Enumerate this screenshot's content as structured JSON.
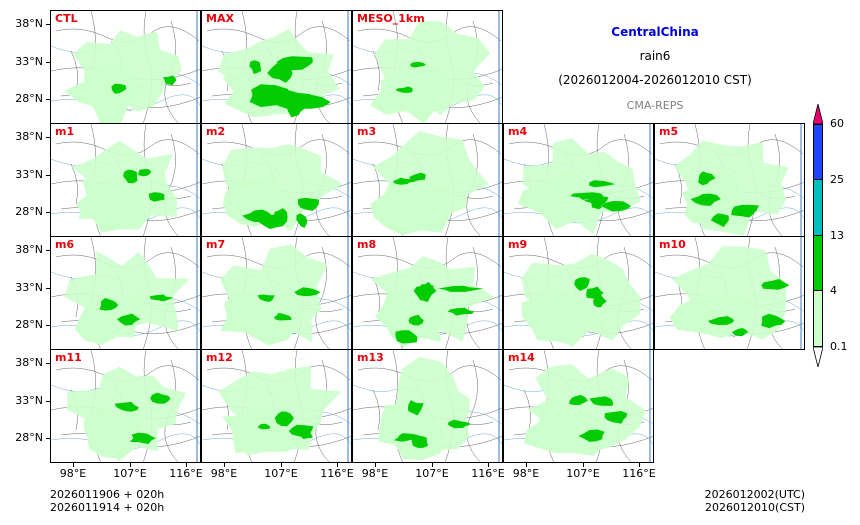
{
  "header": {
    "region": "CentralChina",
    "variable": "rain6",
    "period": "(2026012004-2026012010 CST)",
    "system": "CMA-REPS"
  },
  "panels": [
    {
      "label": "CTL",
      "intensity": 0.35
    },
    {
      "label": "MAX",
      "intensity": 0.95
    },
    {
      "label": "MESO_1km",
      "intensity": 0.15
    },
    {
      "label": "m1",
      "intensity": 0.4
    },
    {
      "label": "m2",
      "intensity": 0.7
    },
    {
      "label": "m3",
      "intensity": 0.3
    },
    {
      "label": "m4",
      "intensity": 0.65
    },
    {
      "label": "m5",
      "intensity": 0.55
    },
    {
      "label": "m6",
      "intensity": 0.4
    },
    {
      "label": "m7",
      "intensity": 0.4
    },
    {
      "label": "m8",
      "intensity": 0.9
    },
    {
      "label": "m9",
      "intensity": 0.45
    },
    {
      "label": "m10",
      "intensity": 0.6
    },
    {
      "label": "m11",
      "intensity": 0.45
    },
    {
      "label": "m12",
      "intensity": 0.6
    },
    {
      "label": "m13",
      "intensity": 0.5
    },
    {
      "label": "m14",
      "intensity": 0.55
    }
  ],
  "axes": {
    "lat_labels": [
      "38°N",
      "33°N",
      "28°N"
    ],
    "lon_labels": [
      "98°E",
      "107°E",
      "116°E"
    ]
  },
  "colorbar": {
    "levels": [
      "0.1",
      "4",
      "13",
      "25",
      "60"
    ],
    "colors": [
      "#ccffcc",
      "#00cc00",
      "#00c0c0",
      "#2244ff",
      "#e8006e"
    ]
  },
  "footer": {
    "init_line1": "2026011906  +  020h",
    "init_line2": "2026011914  +  020h",
    "valid_utc": "2026012002(UTC)",
    "valid_cst": "2026012010(CST)"
  }
}
